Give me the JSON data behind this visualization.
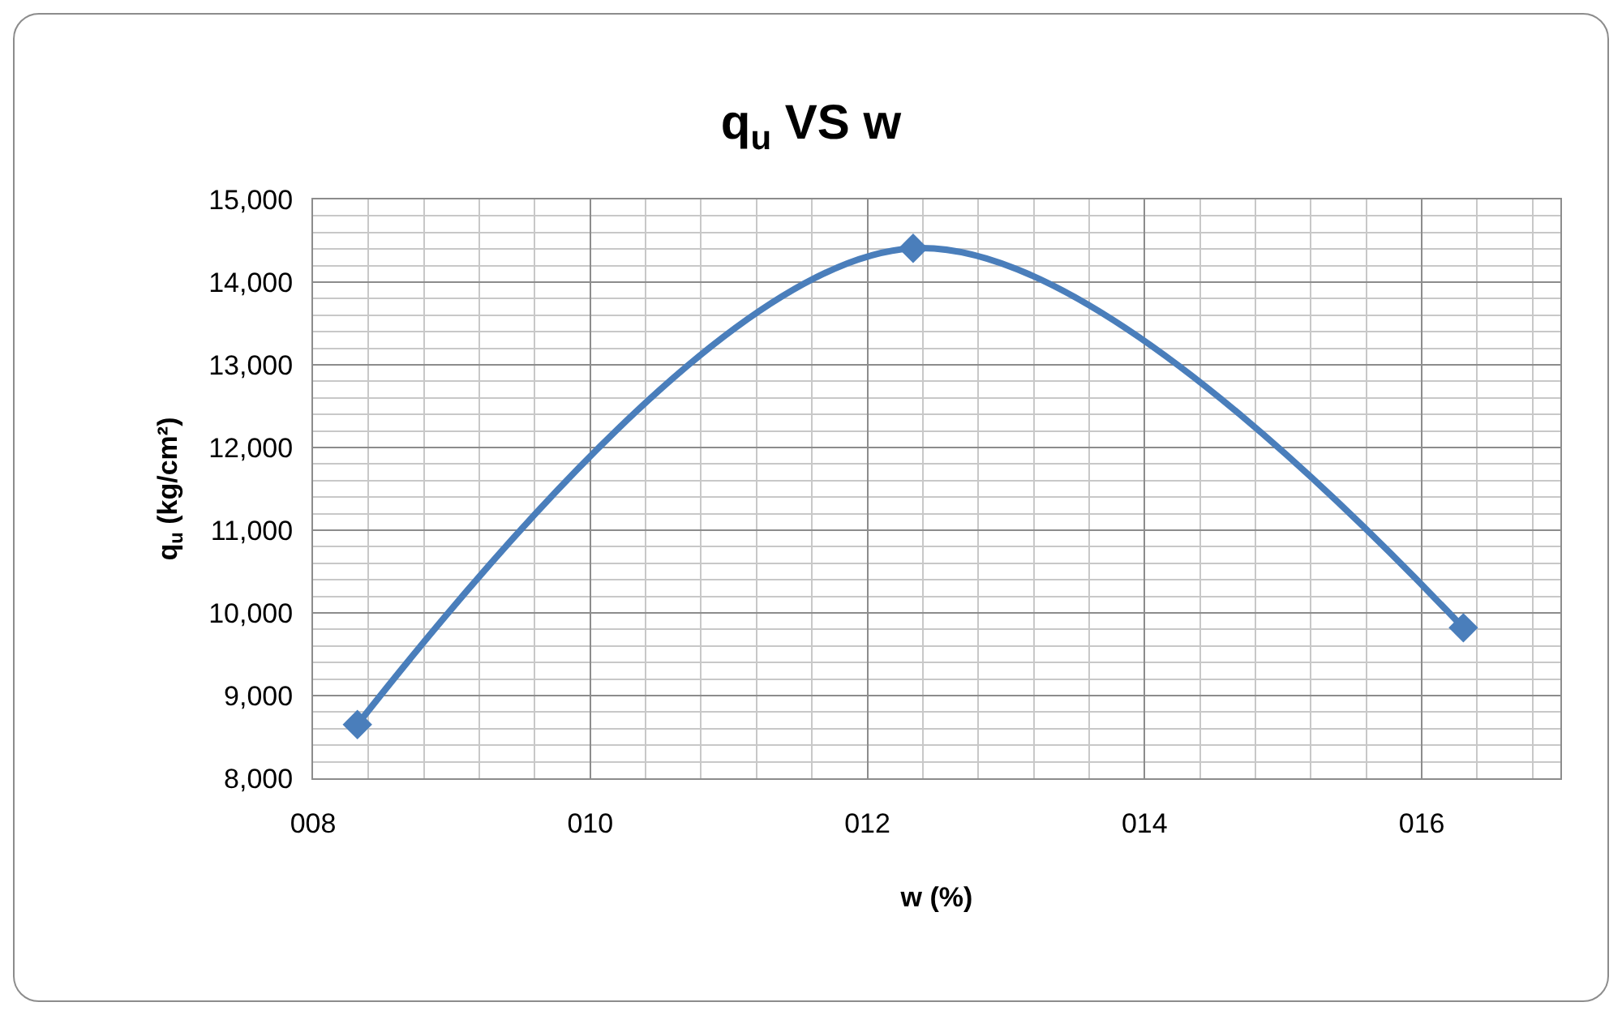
{
  "chart_data": {
    "type": "line",
    "title": "q$_{u}$ VS w",
    "xlabel": "w (%)",
    "ylabel": "q$_{u}$ (kg/cm²)",
    "x": [
      8.32,
      12.33,
      16.3
    ],
    "series": [
      {
        "color": "#4a7ebb",
        "values": [
          8650,
          14410,
          9820
        ]
      }
    ],
    "xlim": [
      8,
      17
    ],
    "xticks": [
      {
        "value": 8,
        "label": "008"
      },
      {
        "value": 10,
        "label": "010"
      },
      {
        "value": 12,
        "label": "012"
      },
      {
        "value": 14,
        "label": "014"
      },
      {
        "value": 16,
        "label": "016"
      }
    ],
    "ylim": [
      8000,
      15000
    ],
    "yticks": [
      {
        "value": 8000,
        "label": "8,000"
      },
      {
        "value": 9000,
        "label": "9,000"
      },
      {
        "value": 10000,
        "label": "10,000"
      },
      {
        "value": 11000,
        "label": "11,000"
      },
      {
        "value": 12000,
        "label": "12,000"
      },
      {
        "value": 13000,
        "label": "13,000"
      },
      {
        "value": 14000,
        "label": "14,000"
      },
      {
        "value": 15000,
        "label": "15,000"
      }
    ],
    "grid": true,
    "marker": "diamond",
    "line_style": "solid"
  }
}
